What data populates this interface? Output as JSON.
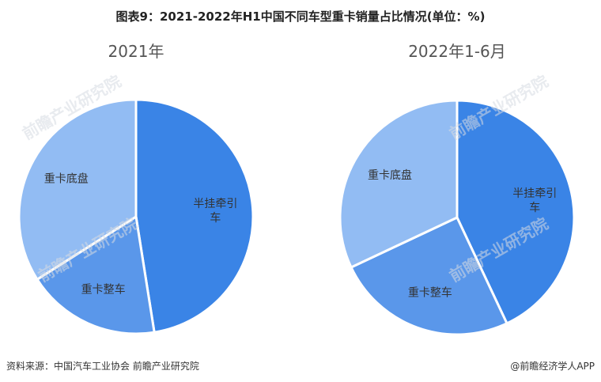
{
  "title": "图表9：2021-2022年H1中国不同车型重卡销量占比情况(单位：%)",
  "chart_data": [
    {
      "type": "pie",
      "title": "2021年",
      "categories": [
        "半挂牵引车",
        "重卡整车",
        "重卡底盘"
      ],
      "values": [
        47.5,
        18.5,
        34.0
      ],
      "colors": [
        "#3a84e6",
        "#5a97ea",
        "#92bcf3"
      ]
    },
    {
      "type": "pie",
      "title": "2022年1-6月",
      "categories": [
        "半挂牵引车",
        "重卡整车",
        "重卡底盘"
      ],
      "values": [
        43.0,
        25.0,
        32.0
      ],
      "colors": [
        "#3a84e6",
        "#5a97ea",
        "#92bcf3"
      ]
    }
  ],
  "footer": {
    "source": "资料来源：中国汽车工业协会 前瞻产业研究院",
    "credit": "@前瞻经济学人APP"
  },
  "watermark": "前瞻产业研究院"
}
